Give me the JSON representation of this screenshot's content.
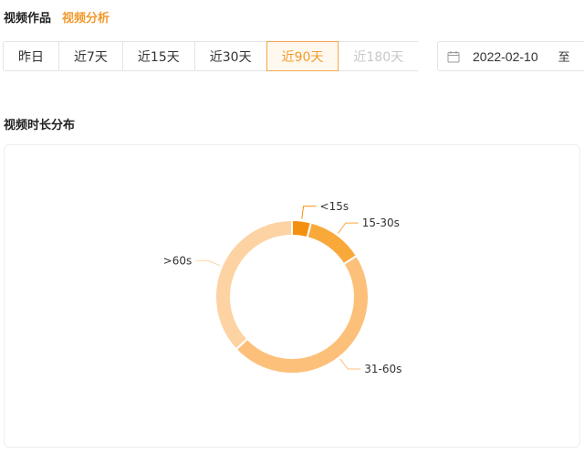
{
  "header": {
    "tabs": [
      {
        "label": "视频作品",
        "active": false
      },
      {
        "label": "视频分析",
        "active": true
      }
    ]
  },
  "range_buttons": [
    {
      "label": "昨日",
      "state": "normal"
    },
    {
      "label": "近7天",
      "state": "normal"
    },
    {
      "label": "近15天",
      "state": "normal"
    },
    {
      "label": "近30天",
      "state": "normal"
    },
    {
      "label": "近90天",
      "state": "active"
    },
    {
      "label": "近180天",
      "state": "disabled"
    }
  ],
  "date_range": {
    "icon": "calendar-icon",
    "start": "2022-02-10",
    "separator": "至"
  },
  "section": {
    "title": "视频时长分布"
  },
  "colors": {
    "accent": "#f29a2e",
    "slice_lt15": "#f4900f",
    "slice_15_30": "#f9a83a",
    "slice_31_60": "#fdc07a",
    "slice_gt60": "#fdd3a4"
  },
  "chart_data": {
    "type": "pie",
    "variant": "donut",
    "categories": [
      "<15s",
      "15-30s",
      "31-60s",
      ">60s"
    ],
    "values": [
      4,
      12,
      47,
      37
    ],
    "unit": "%",
    "title": "",
    "legend": "none"
  }
}
